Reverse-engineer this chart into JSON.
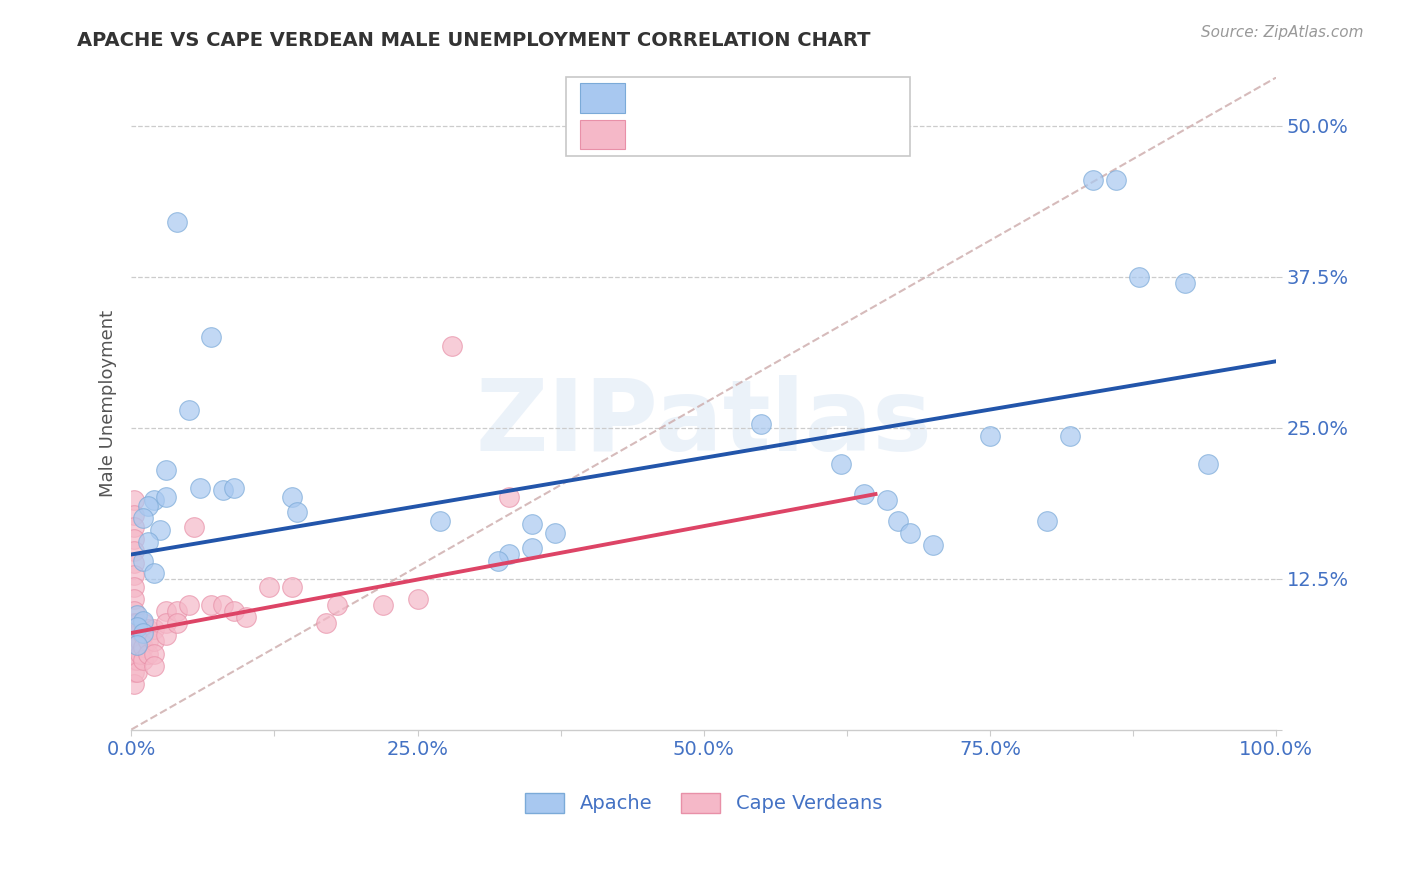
{
  "title": "APACHE VS CAPE VERDEAN MALE UNEMPLOYMENT CORRELATION CHART",
  "source": "Source: ZipAtlas.com",
  "ylabel": "Male Unemployment",
  "xlim": [
    0.0,
    1.0
  ],
  "ylim": [
    0.0,
    0.54
  ],
  "xticks": [
    0.0,
    0.125,
    0.25,
    0.375,
    0.5,
    0.625,
    0.75,
    0.875,
    1.0
  ],
  "xtick_labels": [
    "0.0%",
    "",
    "25.0%",
    "",
    "50.0%",
    "",
    "75.0%",
    "",
    "100.0%"
  ],
  "yticks": [
    0.0,
    0.125,
    0.25,
    0.375,
    0.5
  ],
  "ytick_labels": [
    "",
    "12.5%",
    "25.0%",
    "37.5%",
    "50.0%"
  ],
  "grid_color": "#cccccc",
  "background_color": "#ffffff",
  "watermark": "ZIPatlas",
  "apache_color": "#a8c8f0",
  "apache_edge_color": "#7baad8",
  "cape_color": "#f5b8c8",
  "cape_edge_color": "#e890a8",
  "apache_line_color": "#2255aa",
  "cape_line_color": "#dd4466",
  "diag_line_color": "#ccaaaa",
  "trendline_apache": [
    0.0,
    0.145,
    1.0,
    0.305
  ],
  "trendline_cape": [
    0.0,
    0.08,
    0.65,
    0.195
  ],
  "apache_scatter": [
    [
      0.04,
      0.42
    ],
    [
      0.07,
      0.325
    ],
    [
      0.05,
      0.265
    ],
    [
      0.03,
      0.215
    ],
    [
      0.06,
      0.2
    ],
    [
      0.02,
      0.19
    ],
    [
      0.015,
      0.185
    ],
    [
      0.01,
      0.175
    ],
    [
      0.025,
      0.165
    ],
    [
      0.015,
      0.155
    ],
    [
      0.01,
      0.14
    ],
    [
      0.02,
      0.13
    ],
    [
      0.005,
      0.095
    ],
    [
      0.01,
      0.09
    ],
    [
      0.005,
      0.085
    ],
    [
      0.01,
      0.08
    ],
    [
      0.005,
      0.07
    ],
    [
      0.03,
      0.193
    ],
    [
      0.08,
      0.198
    ],
    [
      0.09,
      0.2
    ],
    [
      0.14,
      0.193
    ],
    [
      0.145,
      0.18
    ],
    [
      0.27,
      0.173
    ],
    [
      0.35,
      0.17
    ],
    [
      0.35,
      0.15
    ],
    [
      0.33,
      0.145
    ],
    [
      0.32,
      0.14
    ],
    [
      0.37,
      0.163
    ],
    [
      0.55,
      0.253
    ],
    [
      0.62,
      0.22
    ],
    [
      0.64,
      0.195
    ],
    [
      0.66,
      0.19
    ],
    [
      0.67,
      0.173
    ],
    [
      0.68,
      0.163
    ],
    [
      0.7,
      0.153
    ],
    [
      0.75,
      0.243
    ],
    [
      0.8,
      0.173
    ],
    [
      0.82,
      0.243
    ],
    [
      0.84,
      0.455
    ],
    [
      0.86,
      0.455
    ],
    [
      0.88,
      0.375
    ],
    [
      0.92,
      0.37
    ],
    [
      0.94,
      0.22
    ]
  ],
  "cape_scatter": [
    [
      0.002,
      0.19
    ],
    [
      0.002,
      0.178
    ],
    [
      0.002,
      0.168
    ],
    [
      0.002,
      0.158
    ],
    [
      0.002,
      0.148
    ],
    [
      0.002,
      0.138
    ],
    [
      0.002,
      0.128
    ],
    [
      0.002,
      0.118
    ],
    [
      0.002,
      0.108
    ],
    [
      0.002,
      0.098
    ],
    [
      0.002,
      0.088
    ],
    [
      0.002,
      0.078
    ],
    [
      0.002,
      0.068
    ],
    [
      0.002,
      0.058
    ],
    [
      0.002,
      0.048
    ],
    [
      0.002,
      0.038
    ],
    [
      0.005,
      0.088
    ],
    [
      0.005,
      0.078
    ],
    [
      0.005,
      0.068
    ],
    [
      0.005,
      0.058
    ],
    [
      0.005,
      0.048
    ],
    [
      0.008,
      0.083
    ],
    [
      0.008,
      0.073
    ],
    [
      0.008,
      0.063
    ],
    [
      0.01,
      0.088
    ],
    [
      0.01,
      0.078
    ],
    [
      0.01,
      0.068
    ],
    [
      0.01,
      0.058
    ],
    [
      0.015,
      0.083
    ],
    [
      0.015,
      0.073
    ],
    [
      0.015,
      0.063
    ],
    [
      0.02,
      0.083
    ],
    [
      0.02,
      0.073
    ],
    [
      0.02,
      0.063
    ],
    [
      0.02,
      0.053
    ],
    [
      0.03,
      0.098
    ],
    [
      0.03,
      0.088
    ],
    [
      0.03,
      0.078
    ],
    [
      0.04,
      0.098
    ],
    [
      0.04,
      0.088
    ],
    [
      0.05,
      0.103
    ],
    [
      0.07,
      0.103
    ],
    [
      0.08,
      0.103
    ],
    [
      0.09,
      0.098
    ],
    [
      0.1,
      0.093
    ],
    [
      0.12,
      0.118
    ],
    [
      0.14,
      0.118
    ],
    [
      0.17,
      0.088
    ],
    [
      0.18,
      0.103
    ],
    [
      0.22,
      0.103
    ],
    [
      0.25,
      0.108
    ],
    [
      0.28,
      0.318
    ],
    [
      0.33,
      0.193
    ],
    [
      0.055,
      0.168
    ]
  ]
}
